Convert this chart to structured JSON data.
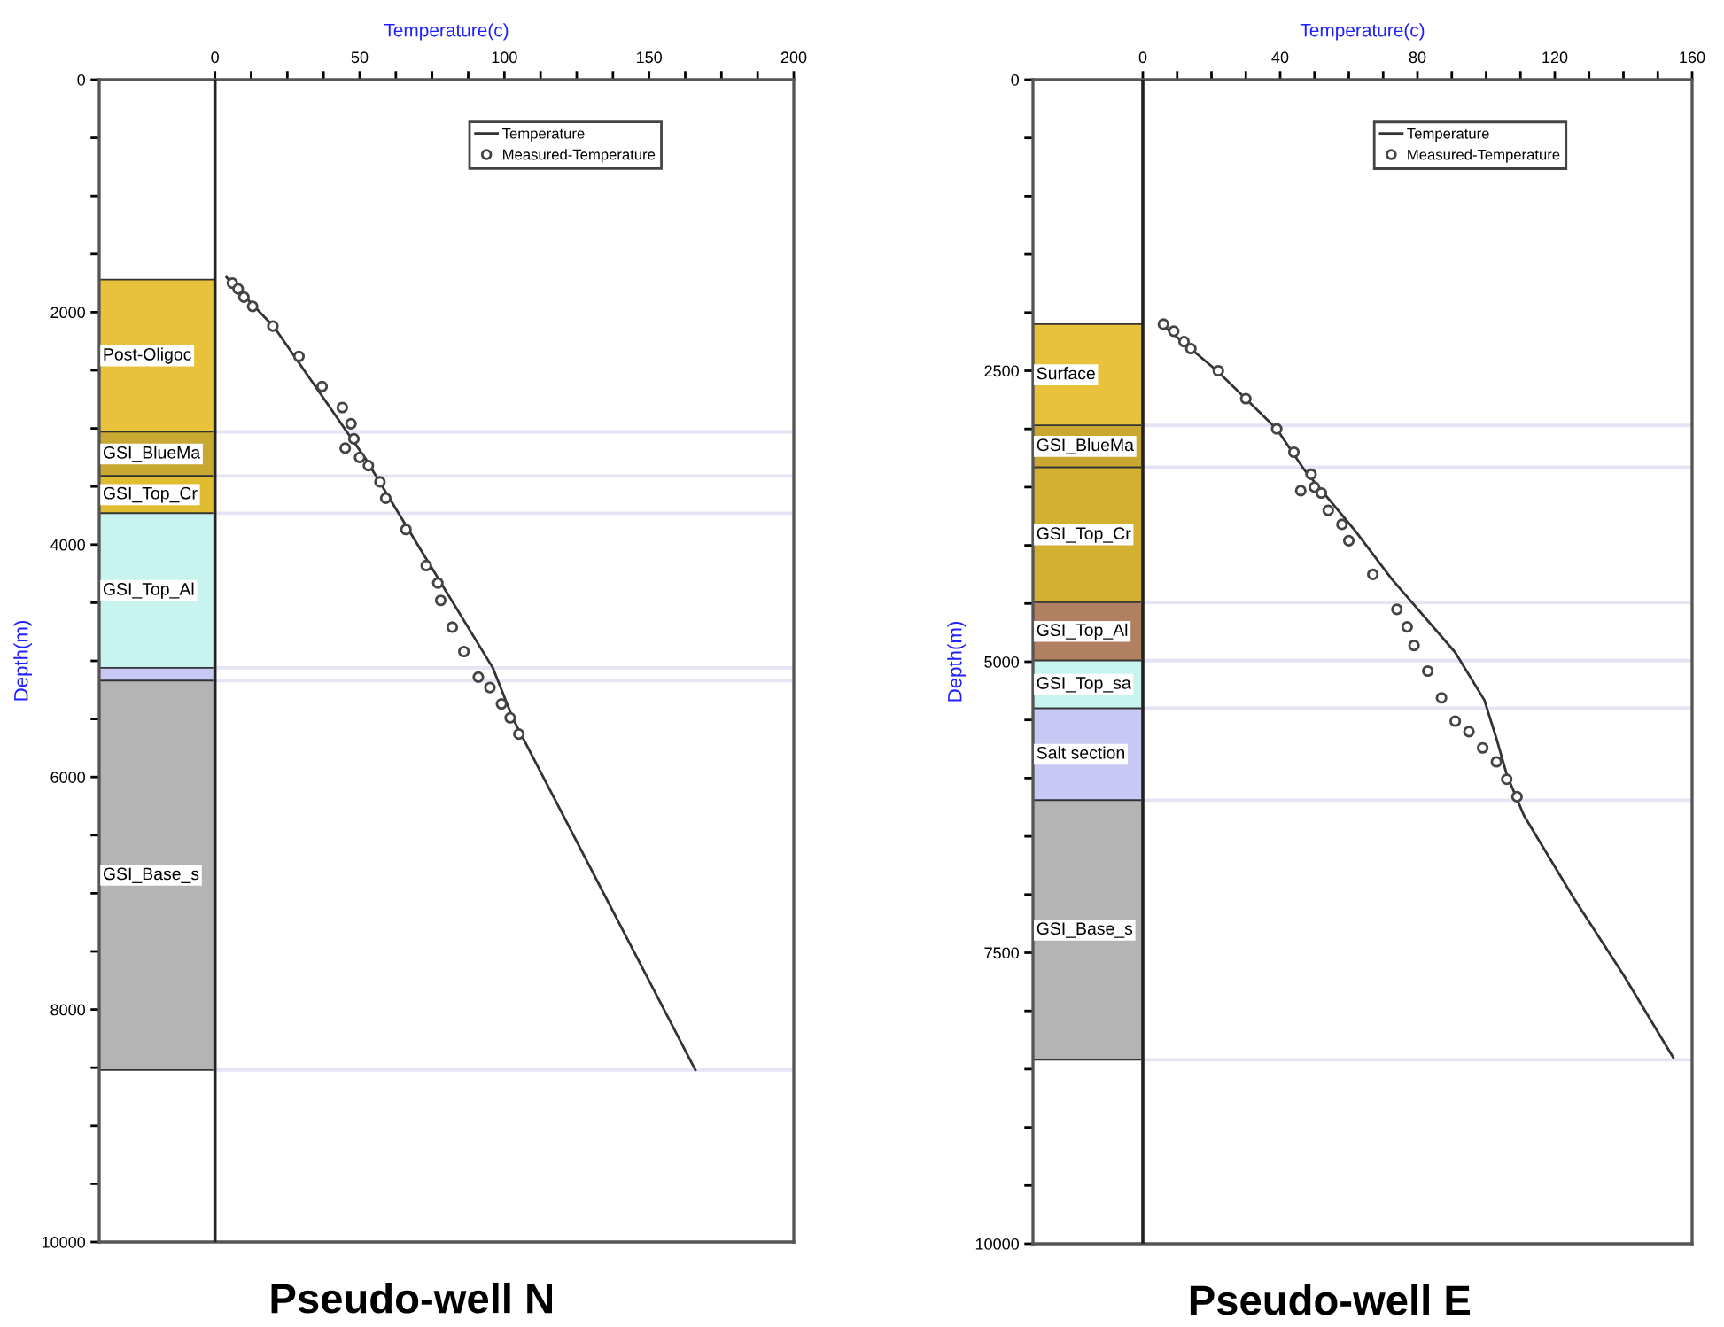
{
  "chart_data": [
    {
      "type": "line",
      "title": "Pseudo-well N",
      "xlabel": "Temperature(c)",
      "ylabel": "Depth(m)",
      "xlim": [
        -40,
        200
      ],
      "xticks": [
        0,
        {
          "value": 12.5,
          "label": null
        },
        {
          "value": 25,
          "label": null
        },
        {
          "value": 37.5,
          "label": null
        },
        50,
        {
          "value": 62.5,
          "label": null
        },
        {
          "value": 75,
          "label": null
        },
        {
          "value": 87.5,
          "label": null
        },
        100,
        {
          "value": 112.5,
          "label": null
        },
        {
          "value": 125,
          "label": null
        },
        {
          "value": 137.5,
          "label": null
        },
        150,
        {
          "value": 162.5,
          "label": null
        },
        {
          "value": 175,
          "label": null
        },
        {
          "value": 187.5,
          "label": null
        },
        200
      ],
      "ylim": [
        10000,
        0
      ],
      "yticks": [
        0,
        {
          "value": 500,
          "label": null
        },
        {
          "value": 1000,
          "label": null
        },
        {
          "value": 1500,
          "label": null
        },
        2000,
        {
          "value": 2500,
          "label": null
        },
        {
          "value": 3000,
          "label": null
        },
        {
          "value": 3500,
          "label": null
        },
        4000,
        {
          "value": 4500,
          "label": null
        },
        {
          "value": 5000,
          "label": null
        },
        {
          "value": 5500,
          "label": null
        },
        6000,
        {
          "value": 6500,
          "label": null
        },
        {
          "value": 7000,
          "label": null
        },
        {
          "value": 7500,
          "label": null
        },
        8000,
        {
          "value": 8500,
          "label": null
        },
        {
          "value": 9000,
          "label": null
        },
        {
          "value": 9500,
          "label": null
        },
        10000
      ],
      "grid": false,
      "legend": "top right",
      "series": [
        {
          "name": "Temperature",
          "color": "#333333",
          "marker": "none",
          "line_style": "solid",
          "values": [
            1700,
            2130,
            3260,
            4000,
            5060,
            5500,
            8520
          ],
          "x": [
            4,
            20.5,
            52,
            70,
            96,
            103,
            166
          ]
        },
        {
          "name": "Measured-Temperature",
          "type": "scatter",
          "color": "#444444",
          "marker": "circle",
          "x": [
            6,
            8,
            10,
            13,
            20,
            29,
            37,
            44,
            47,
            48,
            45,
            50,
            53,
            57,
            59,
            66,
            73,
            77,
            78,
            82,
            86,
            91,
            95,
            99,
            102,
            105
          ],
          "values": [
            1750,
            1800,
            1870,
            1950,
            2120,
            2380,
            2640,
            2820,
            2960,
            3090,
            3170,
            3250,
            3320,
            3460,
            3600,
            3870,
            4180,
            4330,
            4480,
            4710,
            4920,
            5140,
            5230,
            5370,
            5490,
            5630
          ]
        }
      ],
      "bands": [
        {
          "axis": "y",
          "from": 1720,
          "to": 3030,
          "label": "Post-Oligoc",
          "color": "#e8c23a"
        },
        {
          "axis": "y",
          "from": 3030,
          "to": 3410,
          "label": "GSI_BlueMa",
          "color": "#c8a830"
        },
        {
          "axis": "y",
          "from": 3410,
          "to": 3730,
          "label": "GSI_Top_Cr",
          "color": "#e0bc30"
        },
        {
          "axis": "y",
          "from": 3730,
          "to": 5060,
          "label": "GSI_Top_Al",
          "color": "#c8f4f0"
        },
        {
          "axis": "y",
          "from": 5060,
          "to": 5170,
          "label": null,
          "color": "#c8c8f4"
        },
        {
          "axis": "y",
          "from": 5170,
          "to": 8520,
          "label": "GSI_Base_s",
          "color": "#b4b4b4"
        }
      ],
      "ref_lines": [
        {
          "axis": "x",
          "value": 0,
          "label": null,
          "color": "#222222"
        },
        {
          "axis": "y",
          "value": 3030,
          "label": null,
          "color": "#e4e4f4"
        },
        {
          "axis": "y",
          "value": 3410,
          "label": null,
          "color": "#e4e4f4"
        },
        {
          "axis": "y",
          "value": 3730,
          "label": null,
          "color": "#e4e4f4"
        },
        {
          "axis": "y",
          "value": 5060,
          "label": null,
          "color": "#e4e4f4"
        },
        {
          "axis": "y",
          "value": 5170,
          "label": null,
          "color": "#e4e4f4"
        },
        {
          "axis": "y",
          "value": 8520,
          "label": null,
          "color": "#e4e4f4"
        }
      ]
    },
    {
      "type": "line",
      "title": "Pseudo-well E",
      "xlabel": "Temperature(c)",
      "ylabel": "Depth(m)",
      "xlim": [
        -32,
        160
      ],
      "xticks": [
        0,
        {
          "value": 10,
          "label": null
        },
        {
          "value": 20,
          "label": null
        },
        {
          "value": 30,
          "label": null
        },
        40,
        {
          "value": 50,
          "label": null
        },
        {
          "value": 60,
          "label": null
        },
        {
          "value": 70,
          "label": null
        },
        80,
        {
          "value": 90,
          "label": null
        },
        {
          "value": 100,
          "label": null
        },
        {
          "value": 110,
          "label": null
        },
        120,
        {
          "value": 130,
          "label": null
        },
        {
          "value": 140,
          "label": null
        },
        {
          "value": 150,
          "label": null
        },
        160
      ],
      "ylim": [
        10000,
        0
      ],
      "yticks": [
        0,
        {
          "value": 500,
          "label": null
        },
        {
          "value": 1000,
          "label": null
        },
        {
          "value": 1500,
          "label": null
        },
        {
          "value": 2000,
          "label": null
        },
        2500,
        {
          "value": 3000,
          "label": null
        },
        {
          "value": 3500,
          "label": null
        },
        {
          "value": 4000,
          "label": null
        },
        {
          "value": 4500,
          "label": null
        },
        5000,
        {
          "value": 5500,
          "label": null
        },
        {
          "value": 6000,
          "label": null
        },
        {
          "value": 6500,
          "label": null
        },
        {
          "value": 7000,
          "label": null
        },
        7500,
        {
          "value": 8000,
          "label": null
        },
        {
          "value": 8500,
          "label": null
        },
        {
          "value": 9000,
          "label": null
        },
        {
          "value": 9500,
          "label": null
        },
        10000
      ],
      "grid": false,
      "legend": "top right",
      "series": [
        {
          "name": "Temperature",
          "color": "#333333",
          "marker": "none",
          "line_style": "solid",
          "x": [
            5,
            21.6,
            39,
            47,
            62,
            72.5,
            91,
            99.5,
            103,
            106,
            111,
            125.5,
            140,
            154.5
          ],
          "values": [
            2090,
            2500,
            3000,
            3350,
            3880,
            4290,
            4920,
            5330,
            5660,
            5970,
            6320,
            7030,
            7690,
            8400
          ]
        },
        {
          "name": "Measured-Temperature",
          "type": "scatter",
          "color": "#444444",
          "marker": "circle",
          "x": [
            6,
            9,
            12,
            14,
            22,
            30,
            39,
            44,
            49,
            46,
            50,
            52,
            54,
            58,
            60,
            67,
            74,
            77,
            79,
            83,
            87,
            91,
            95,
            99,
            103,
            106,
            109
          ],
          "values": [
            2100,
            2160,
            2250,
            2310,
            2500,
            2740,
            3000,
            3200,
            3390,
            3530,
            3500,
            3550,
            3700,
            3820,
            3960,
            4250,
            4550,
            4700,
            4860,
            5080,
            5310,
            5510,
            5600,
            5740,
            5860,
            6010,
            6160
          ]
        }
      ],
      "bands": [
        {
          "axis": "y",
          "from": 2100,
          "to": 2970,
          "label": "Surface",
          "color": "#e8c23a"
        },
        {
          "axis": "y",
          "from": 2970,
          "to": 3330,
          "label": "GSI_BlueMa",
          "color": "#c8a830"
        },
        {
          "axis": "y",
          "from": 3330,
          "to": 4490,
          "label": "GSI_Top_Cr",
          "color": "#d4b030"
        },
        {
          "axis": "y",
          "from": 4490,
          "to": 4990,
          "label": "GSI_Top_Al",
          "color": "#b08060"
        },
        {
          "axis": "y",
          "from": 4990,
          "to": 5400,
          "label": "GSI_Top_sa",
          "color": "#c8f4f0"
        },
        {
          "axis": "y",
          "from": 5400,
          "to": 6190,
          "label": "Salt section",
          "color": "#c8c8f4"
        },
        {
          "axis": "y",
          "from": 6190,
          "to": 8420,
          "label": "GSI_Base_s",
          "color": "#b4b4b4"
        }
      ],
      "ref_lines": [
        {
          "axis": "x",
          "value": 0,
          "label": null,
          "color": "#222222"
        },
        {
          "axis": "y",
          "value": 2970,
          "label": null,
          "color": "#e4e4f4"
        },
        {
          "axis": "y",
          "value": 3330,
          "label": null,
          "color": "#e4e4f4"
        },
        {
          "axis": "y",
          "value": 4490,
          "label": null,
          "color": "#e4e4f4"
        },
        {
          "axis": "y",
          "value": 4990,
          "label": null,
          "color": "#e4e4f4"
        },
        {
          "axis": "y",
          "value": 5400,
          "label": null,
          "color": "#e4e4f4"
        },
        {
          "axis": "y",
          "value": 6190,
          "label": null,
          "color": "#e4e4f4"
        },
        {
          "axis": "y",
          "value": 8420,
          "label": null,
          "color": "#e4e4f4"
        }
      ]
    }
  ]
}
